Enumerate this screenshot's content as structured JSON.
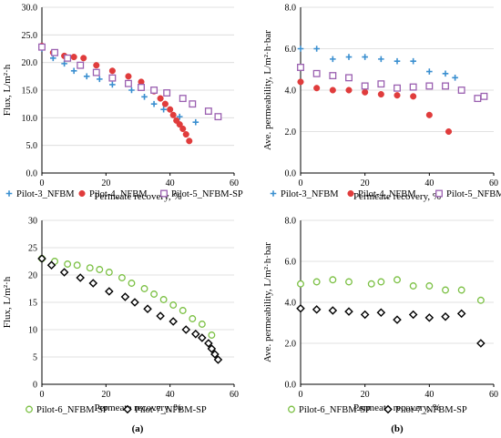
{
  "chart_data": [
    {
      "type": "scatter",
      "xlabel": "Permeate recovery, %",
      "ylabel": "Flux, L/m²·h",
      "xlim": [
        0,
        60
      ],
      "ylim": [
        0,
        30
      ],
      "xticks": [
        0,
        20,
        40,
        60
      ],
      "yticks": [
        "0.0",
        "5.0",
        "10.0",
        "15.0",
        "20.0",
        "25.0",
        "30.0"
      ],
      "grid": true,
      "legend": "bottom",
      "series": [
        {
          "name": "Pilot-3_NFBM",
          "marker": "plus",
          "color": "#3a8fd0",
          "x": [
            0,
            3.5,
            7,
            10,
            14,
            18,
            22,
            28,
            32,
            35,
            38,
            43,
            48
          ],
          "y": [
            22.5,
            20.8,
            19.8,
            18.5,
            17.5,
            17.0,
            16.0,
            15.0,
            13.8,
            12.5,
            11.5,
            10.2,
            9.2
          ]
        },
        {
          "name": "Pilot-4_NFBM",
          "marker": "circle",
          "color": "#e03c3c",
          "x": [
            0,
            3.5,
            7,
            10,
            13,
            17,
            22,
            27,
            31,
            35,
            37,
            38.5,
            40,
            41,
            42,
            43,
            44,
            45,
            46
          ],
          "y": [
            23.0,
            21.8,
            21.2,
            21.0,
            20.8,
            19.5,
            18.5,
            17.5,
            16.5,
            14.8,
            13.5,
            12.5,
            11.5,
            10.5,
            9.5,
            8.8,
            8.0,
            7.0,
            5.8
          ]
        },
        {
          "name": "Pilot-5_NFBM-SP",
          "marker": "square",
          "color": "#9a5fb0",
          "x": [
            0,
            4,
            8,
            12,
            17,
            22,
            27,
            31,
            35,
            39,
            44,
            47,
            52,
            55
          ],
          "y": [
            22.8,
            21.8,
            20.8,
            19.5,
            18.2,
            17.2,
            16.2,
            15.5,
            15.0,
            14.5,
            13.5,
            12.5,
            11.2,
            10.2
          ]
        }
      ]
    },
    {
      "type": "scatter",
      "xlabel": "Permeate recovery, %",
      "ylabel": "Ave. permeability, L/m²·h·bar",
      "xlim": [
        0,
        60
      ],
      "ylim": [
        0,
        8
      ],
      "xticks": [
        0,
        20,
        40,
        60
      ],
      "yticks": [
        "0.0",
        "2.0",
        "4.0",
        "6.0",
        "8.0"
      ],
      "grid": true,
      "legend": "bottom",
      "series": [
        {
          "name": "Pilot-3_NFBM",
          "marker": "plus",
          "color": "#3a8fd0",
          "x": [
            0,
            5,
            10,
            15,
            20,
            25,
            30,
            35,
            40,
            45,
            48
          ],
          "y": [
            6.0,
            6.0,
            5.5,
            5.6,
            5.6,
            5.5,
            5.4,
            5.4,
            4.9,
            4.8,
            4.6
          ]
        },
        {
          "name": "Pilot-4_NFBM",
          "marker": "circle",
          "color": "#e03c3c",
          "x": [
            0,
            5,
            10,
            15,
            20,
            25,
            30,
            35,
            40,
            46
          ],
          "y": [
            4.4,
            4.1,
            4.0,
            4.0,
            3.9,
            3.8,
            3.75,
            3.7,
            2.8,
            2.0
          ]
        },
        {
          "name": "Pilot-5_NFBM",
          "marker": "square",
          "color": "#9a5fb0",
          "x": [
            0,
            5,
            10,
            15,
            20,
            25,
            30,
            35,
            40,
            45,
            50,
            55,
            57
          ],
          "y": [
            5.1,
            4.8,
            4.7,
            4.6,
            4.2,
            4.3,
            4.1,
            4.15,
            4.2,
            4.2,
            4.0,
            3.6,
            3.7
          ]
        }
      ]
    },
    {
      "type": "scatter",
      "xlabel": "Permeate recovery, %",
      "ylabel": "Flux, L/m²·h",
      "xlim": [
        0,
        60
      ],
      "ylim": [
        0,
        30
      ],
      "xticks": [
        0,
        20,
        40,
        60
      ],
      "yticks": [
        "0",
        "5",
        "10",
        "15",
        "20",
        "25",
        "30"
      ],
      "grid": true,
      "legend": "bottom",
      "series": [
        {
          "name": "Pilot-6_NFBM-SP",
          "marker": "circle-open",
          "color": "#7bc043",
          "x": [
            0,
            4,
            8,
            11,
            15,
            18,
            21,
            25,
            28,
            32,
            35,
            38,
            41,
            44,
            47,
            50,
            53
          ],
          "y": [
            23.0,
            22.5,
            22.0,
            21.8,
            21.3,
            21.0,
            20.5,
            19.5,
            18.5,
            17.5,
            16.5,
            15.5,
            14.5,
            13.5,
            12.0,
            11.0,
            9.0
          ]
        },
        {
          "name": "Pilot-7_NFBM-SP",
          "marker": "diamond",
          "color": "#000000",
          "x": [
            0,
            3,
            7,
            12,
            16,
            21,
            26,
            29,
            33,
            37,
            41,
            45,
            48,
            50,
            52,
            53,
            54,
            55
          ],
          "y": [
            23.0,
            21.8,
            20.5,
            19.5,
            18.5,
            17.0,
            16.0,
            15.0,
            13.8,
            12.5,
            11.5,
            10.0,
            9.2,
            8.5,
            7.5,
            6.5,
            5.5,
            4.5
          ]
        }
      ]
    },
    {
      "type": "scatter",
      "xlabel": "Permeate recovery, %",
      "ylabel": "Ave. permeability, L/m²·h·bar",
      "xlim": [
        0,
        60
      ],
      "ylim": [
        0,
        8
      ],
      "xticks": [
        0,
        20,
        40,
        60
      ],
      "yticks": [
        "0.0",
        "2.0",
        "4.0",
        "6.0",
        "8.0"
      ],
      "grid": true,
      "legend": "bottom",
      "series": [
        {
          "name": "Pilot-6_NFBM-SP",
          "marker": "circle-open",
          "color": "#7bc043",
          "x": [
            0,
            5,
            10,
            15,
            22,
            25,
            30,
            35,
            40,
            45,
            50,
            56
          ],
          "y": [
            4.9,
            5.0,
            5.1,
            5.0,
            4.9,
            5.0,
            5.1,
            4.8,
            4.8,
            4.6,
            4.6,
            4.1
          ]
        },
        {
          "name": "Pilot-7_NFBM-SP",
          "marker": "diamond",
          "color": "#000000",
          "x": [
            0,
            5,
            10,
            15,
            20,
            25,
            30,
            35,
            40,
            45,
            50,
            56
          ],
          "y": [
            3.7,
            3.65,
            3.6,
            3.55,
            3.4,
            3.5,
            3.15,
            3.4,
            3.25,
            3.3,
            3.45,
            2.0
          ]
        }
      ]
    }
  ],
  "panel_labels": [
    "(a)",
    "(b)"
  ]
}
